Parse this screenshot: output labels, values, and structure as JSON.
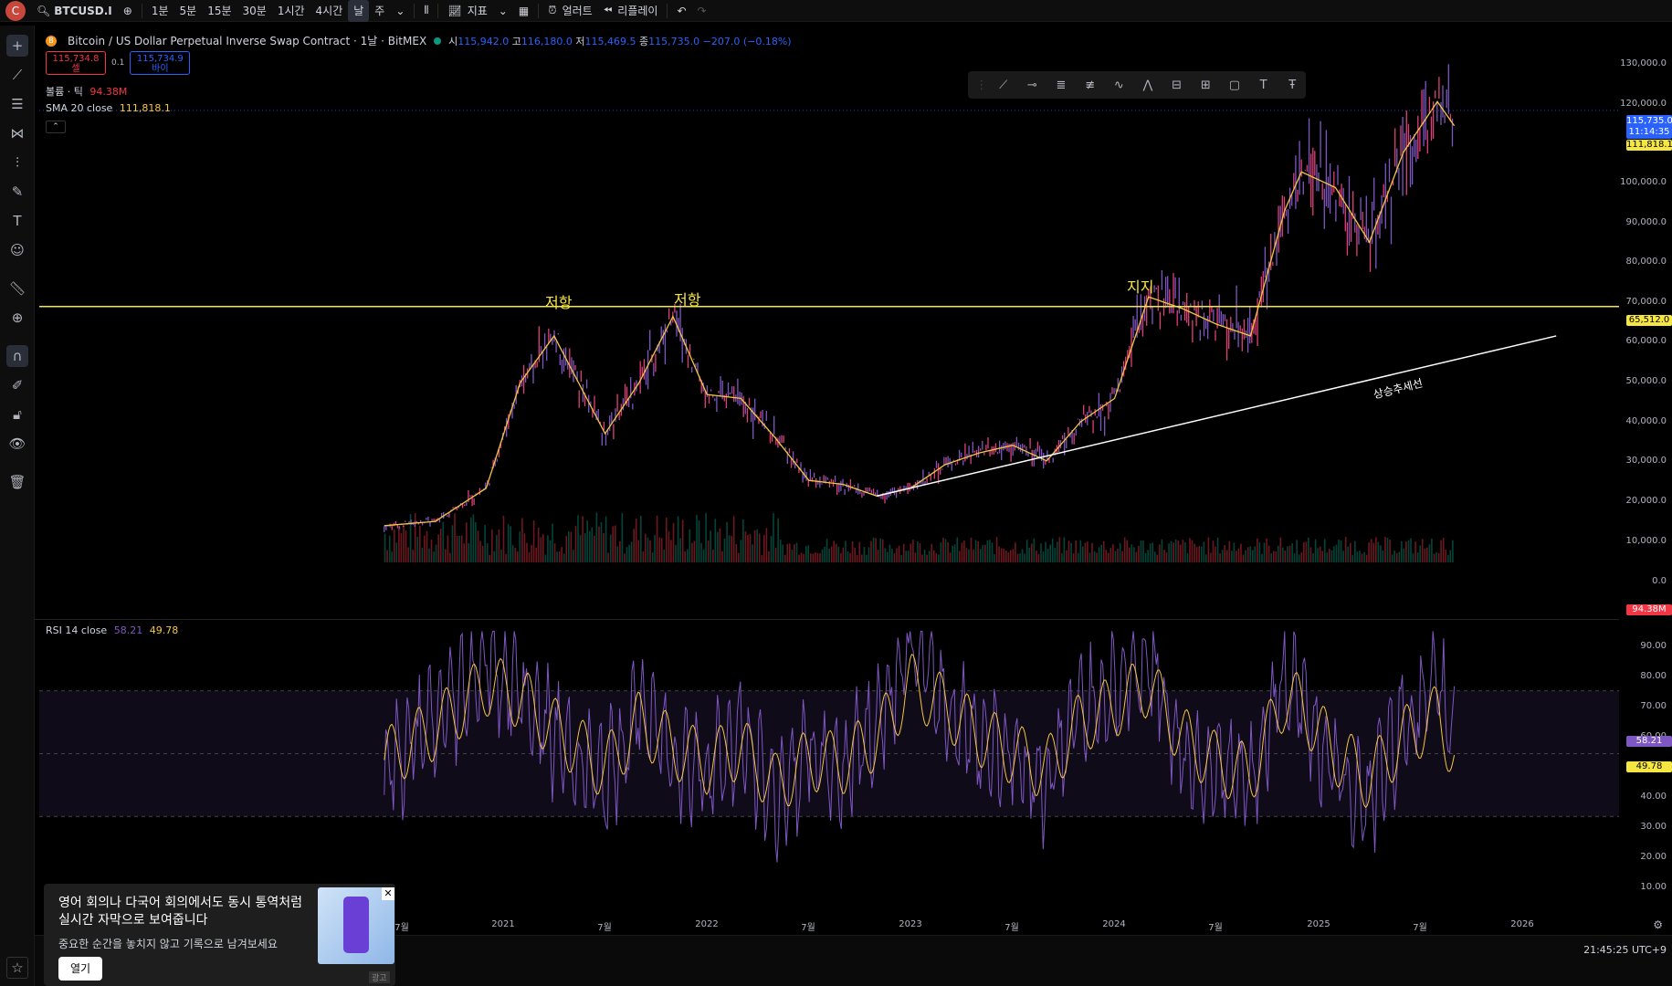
{
  "topbar": {
    "avatar": "C",
    "symbol": "BTCUSD.I",
    "intervals": [
      "1분",
      "5분",
      "15분",
      "30분",
      "1시간",
      "4시간",
      "날",
      "주"
    ],
    "indicators_label": "지표",
    "alert_label": "얼러트",
    "replay_label": "리플레이"
  },
  "legend": {
    "title": "Bitcoin / US Dollar Perpetual Inverse Swap Contract · 1날 · BitMEX",
    "open_label": "시",
    "open": "115,942.0",
    "high_label": "고",
    "high": "116,180.0",
    "low_label": "저",
    "low": "115,469.5",
    "close_label": "종",
    "close": "115,735.0",
    "change": "−207.0 (−0.18%)",
    "sell_price": "115,734.8",
    "sell_label": "셀",
    "spread": "0.1",
    "buy_price": "115,734.9",
    "buy_label": "바이",
    "volume_label": "볼륨 · 틱",
    "volume_value": "94.38M",
    "sma_label": "SMA 20 close",
    "sma_value": "111,818.1"
  },
  "rsi_legend": {
    "label": "RSI 14 close",
    "v1": "58.21",
    "v2": "49.78"
  },
  "annotations": {
    "resist1": "저항",
    "resist2": "저항",
    "support": "지지",
    "trendline": "상승추세선"
  },
  "price_axis": {
    "ticks": [
      "130,000.0",
      "120,000.0",
      "110,000.0",
      "100,000.0",
      "90,000.0",
      "80,000.0",
      "70,000.0",
      "60,000.0",
      "50,000.0",
      "40,000.0",
      "30,000.0",
      "20,000.0",
      "10,000.0",
      "0.0"
    ],
    "last_price": "115,735.0",
    "countdown": "11:14:35",
    "sma_tag": "111,818.1",
    "hline_tag": "65,512.0",
    "volume_tag": "94.38M"
  },
  "rsi_axis": {
    "ticks": [
      "90.00",
      "80.00",
      "70.00",
      "60.00",
      "50.00",
      "40.00",
      "30.00",
      "20.00",
      "10.00"
    ],
    "rsi_tag": "58.21",
    "ma_tag": "49.78"
  },
  "time_axis": [
    "7월",
    "2021",
    "7월",
    "2022",
    "7월",
    "2023",
    "7월",
    "2024",
    "7월",
    "2025",
    "7월",
    "2026"
  ],
  "clock": "21:45:25 UTC+9",
  "ad": {
    "headline": "영어 회의나 다국어 회의에서도 동시 통역처럼 실시간 자막으로 보여줍니다",
    "sub": "중요한 순간을 놓치지 않고 기록으로 남겨보세요",
    "button": "열기",
    "tag": "광고"
  },
  "colors": {
    "hline": "#f5e642",
    "sma": "#f5c542",
    "rsi": "#7e57c2",
    "rsi_ma": "#f5c542",
    "last_price": "#2962ff",
    "volume_tag": "#f23645"
  },
  "chart_data": [
    {
      "type": "line",
      "title": "Bitcoin / US Dollar Perpetual Inverse Swap Contract · 1날 · BitMEX",
      "x": [
        "2020-06",
        "2020-09",
        "2020-12",
        "2021-02",
        "2021-04",
        "2021-07",
        "2021-09",
        "2021-11",
        "2022-01",
        "2022-03",
        "2022-05",
        "2022-07",
        "2022-09",
        "2022-11",
        "2023-01",
        "2023-03",
        "2023-05",
        "2023-07",
        "2023-09",
        "2023-11",
        "2024-01",
        "2024-03",
        "2024-05",
        "2024-07",
        "2024-09",
        "2024-11",
        "2024-12",
        "2025-02",
        "2025-04",
        "2025-06",
        "2025-08",
        "2025-09"
      ],
      "series": [
        {
          "name": "SMA 20 close",
          "values": [
            9400,
            10500,
            19000,
            46000,
            58000,
            33000,
            46000,
            63000,
            43000,
            42000,
            32000,
            21000,
            20000,
            17000,
            19000,
            25000,
            28000,
            30000,
            26000,
            36000,
            42000,
            68000,
            65000,
            61000,
            58000,
            90000,
            100000,
            96000,
            82000,
            105000,
            118000,
            111818
          ]
        }
      ],
      "hline": 65512,
      "trendline": {
        "from": [
          "2022-11",
          17000
        ],
        "to": [
          "2026-03",
          58000
        ]
      },
      "ylim": [
        0,
        130000
      ]
    },
    {
      "type": "line",
      "title": "RSI 14 close",
      "ylim": [
        10,
        90
      ],
      "bands": [
        30,
        70
      ],
      "series": [
        {
          "name": "RSI",
          "values": [
            45,
            60,
            80,
            70,
            55,
            40,
            65,
            50,
            45,
            55,
            35,
            50,
            45,
            60,
            85,
            65,
            55,
            50,
            40,
            65,
            70,
            80,
            50,
            45,
            40,
            75,
            65,
            45,
            35,
            60,
            70,
            58
          ]
        },
        {
          "name": "RSI MA",
          "values": [
            48,
            58,
            72,
            68,
            58,
            45,
            60,
            52,
            47,
            52,
            40,
            48,
            47,
            55,
            72,
            65,
            56,
            50,
            45,
            60,
            65,
            72,
            55,
            47,
            43,
            68,
            65,
            50,
            42,
            55,
            62,
            50
          ]
        }
      ]
    }
  ]
}
